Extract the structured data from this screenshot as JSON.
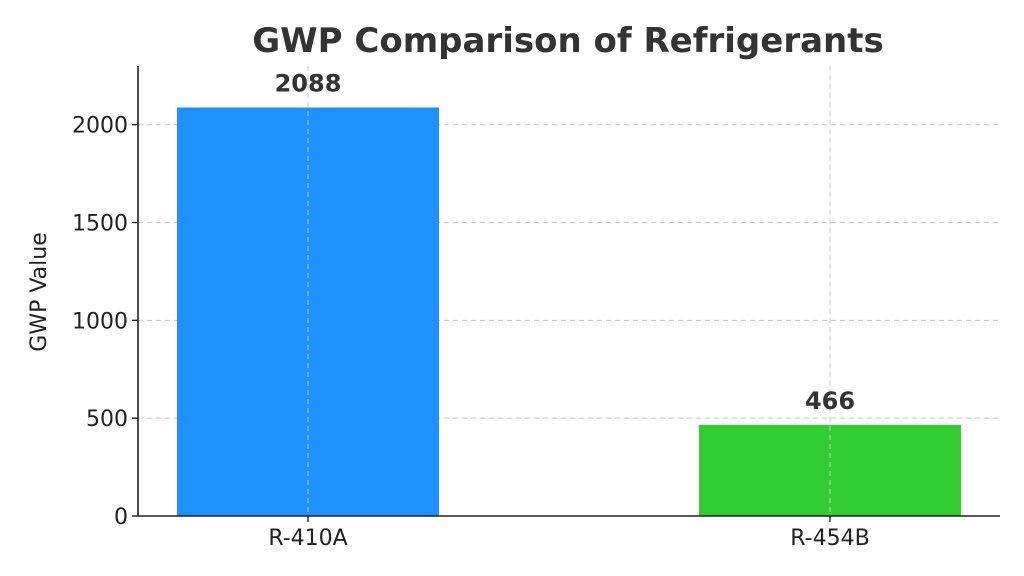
{
  "chart_data": {
    "type": "bar",
    "title": "GWP Comparison of Refrigerants",
    "xlabel": "",
    "ylabel": "GWP Value",
    "categories": [
      "R-410A",
      "R-454B"
    ],
    "values": [
      2088,
      466
    ],
    "data_labels": [
      "2088",
      "466"
    ],
    "colors": [
      "#1e90ff",
      "#32cd32"
    ],
    "ylim": [
      0,
      2300
    ],
    "yticks": [
      0,
      500,
      1000,
      1500,
      2000
    ],
    "ytick_labels": [
      "0",
      "500",
      "1000",
      "1500",
      "2000"
    ],
    "grid": true,
    "legend": null
  }
}
